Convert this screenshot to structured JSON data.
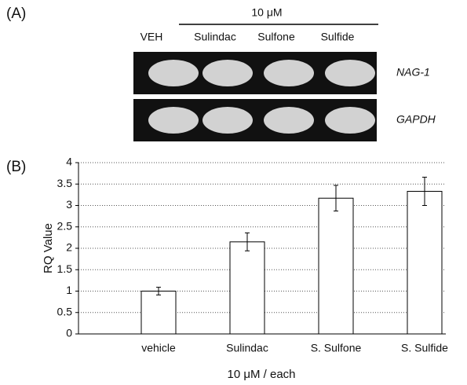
{
  "panel_a": {
    "label": "(A)",
    "concentration": "10 μM",
    "lanes": [
      "VEH",
      "Sulindac",
      "Sulfone",
      "Sulfide"
    ],
    "genes": [
      "NAG-1",
      "GAPDH"
    ]
  },
  "chart_data": {
    "type": "bar",
    "panel_label": "(B)",
    "categories": [
      "vehicle",
      "Sulindac",
      "S. Sulfone",
      "S. Sulfide"
    ],
    "values": [
      1.0,
      2.15,
      3.17,
      3.33
    ],
    "errors": [
      0.09,
      0.21,
      0.3,
      0.33
    ],
    "color": "#ffffff",
    "y_label": "RQ Value",
    "x_label": "10 μM / each",
    "ylim": [
      0,
      4
    ],
    "yticks": [
      0,
      0.5,
      1,
      1.5,
      2,
      2.5,
      3,
      3.5,
      4
    ],
    "grid": true
  }
}
